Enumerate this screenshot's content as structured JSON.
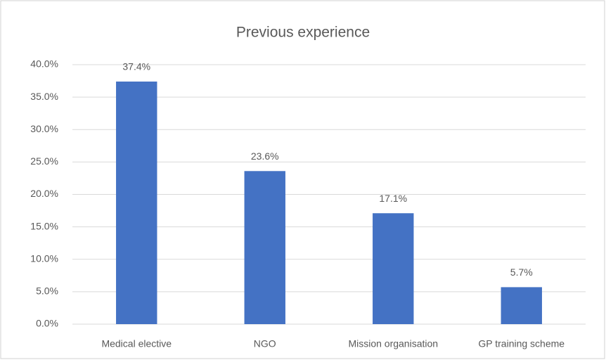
{
  "chart_data": {
    "type": "bar",
    "title": "Previous experience",
    "categories": [
      "Medical elective",
      "NGO",
      "Mission organisation",
      "GP training scheme"
    ],
    "values": [
      37.4,
      23.6,
      17.1,
      5.7
    ],
    "value_labels": [
      "37.4%",
      "23.6%",
      "17.1%",
      "5.7%"
    ],
    "color": "#4472c4",
    "ylim": [
      0,
      40
    ],
    "yticks": [
      {
        "value": 0,
        "label": "0.0%"
      },
      {
        "value": 5,
        "label": "5.0%"
      },
      {
        "value": 10,
        "label": "10.0%"
      },
      {
        "value": 15,
        "label": "15.0%"
      },
      {
        "value": 20,
        "label": "20.0%"
      },
      {
        "value": 25,
        "label": "25.0%"
      },
      {
        "value": 30,
        "label": "30.0%"
      },
      {
        "value": 35,
        "label": "35.0%"
      },
      {
        "value": 40,
        "label": "40.0%"
      }
    ],
    "grid": true
  }
}
